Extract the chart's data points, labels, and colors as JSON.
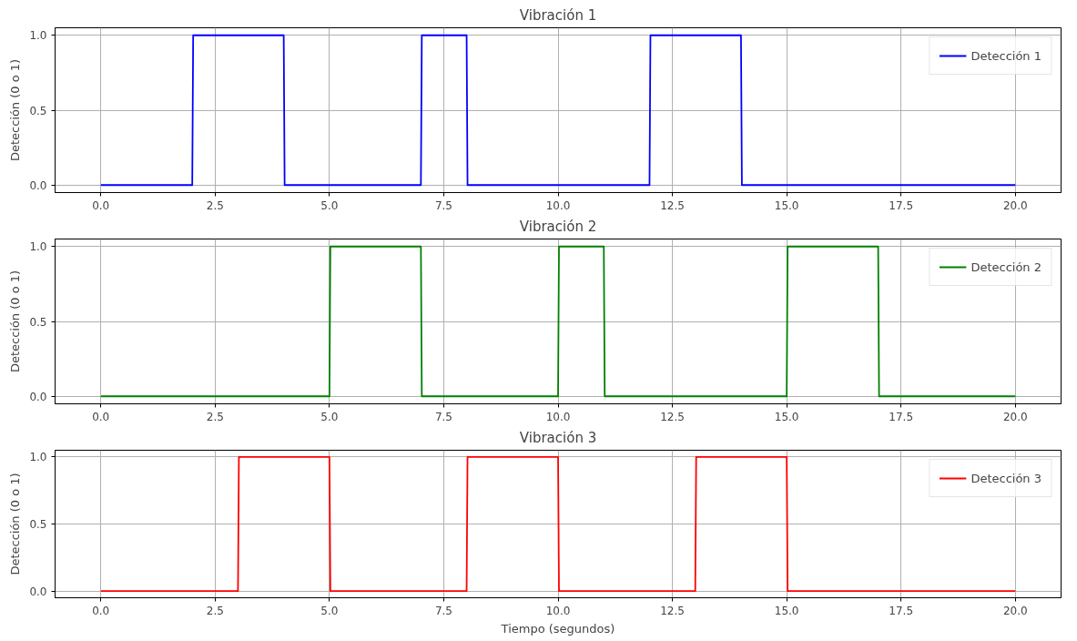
{
  "chart_data": [
    {
      "type": "line",
      "title": "Vibración 1",
      "ylabel": "Detección (0 o 1)",
      "x": [
        0,
        2,
        2.02,
        4,
        4.02,
        7,
        7.02,
        8,
        8.02,
        12,
        12.02,
        14,
        14.02,
        20
      ],
      "series": [
        {
          "name": "Detección 1",
          "color": "#0000ff",
          "values": [
            0,
            0,
            1,
            1,
            0,
            0,
            1,
            1,
            0,
            0,
            1,
            1,
            0,
            0
          ]
        }
      ],
      "xlim": [
        -1,
        21
      ],
      "ylim": [
        -0.05,
        1.05
      ],
      "xticks": [
        {
          "value": 0,
          "label": "0.0"
        },
        {
          "value": 2.5,
          "label": "2.5"
        },
        {
          "value": 5,
          "label": "5.0"
        },
        {
          "value": 7.5,
          "label": "7.5"
        },
        {
          "value": 10,
          "label": "10.0"
        },
        {
          "value": 12.5,
          "label": "12.5"
        },
        {
          "value": 15,
          "label": "15.0"
        },
        {
          "value": 17.5,
          "label": "17.5"
        },
        {
          "value": 20,
          "label": "20.0"
        }
      ],
      "yticks": [
        {
          "value": 0,
          "label": "0.0"
        },
        {
          "value": 0.5,
          "label": "0.5"
        },
        {
          "value": 1,
          "label": "1.0"
        }
      ],
      "grid": true,
      "legend": "top right"
    },
    {
      "type": "line",
      "title": "Vibración 2",
      "ylabel": "Detección (0 o 1)",
      "x": [
        0,
        5,
        5.02,
        7,
        7.02,
        10,
        10.02,
        11,
        11.02,
        15,
        15.02,
        17,
        17.02,
        20
      ],
      "series": [
        {
          "name": "Detección 2",
          "color": "#008000",
          "values": [
            0,
            0,
            1,
            1,
            0,
            0,
            1,
            1,
            0,
            0,
            1,
            1,
            0,
            0
          ]
        }
      ],
      "xlim": [
        -1,
        21
      ],
      "ylim": [
        -0.05,
        1.05
      ],
      "xticks": [
        {
          "value": 0,
          "label": "0.0"
        },
        {
          "value": 2.5,
          "label": "2.5"
        },
        {
          "value": 5,
          "label": "5.0"
        },
        {
          "value": 7.5,
          "label": "7.5"
        },
        {
          "value": 10,
          "label": "10.0"
        },
        {
          "value": 12.5,
          "label": "12.5"
        },
        {
          "value": 15,
          "label": "15.0"
        },
        {
          "value": 17.5,
          "label": "17.5"
        },
        {
          "value": 20,
          "label": "20.0"
        }
      ],
      "yticks": [
        {
          "value": 0,
          "label": "0.0"
        },
        {
          "value": 0.5,
          "label": "0.5"
        },
        {
          "value": 1,
          "label": "1.0"
        }
      ],
      "grid": true,
      "legend": "top right"
    },
    {
      "type": "line",
      "title": "Vibración 3",
      "ylabel": "Detección (0 o 1)",
      "xlabel": "Tiempo (segundos)",
      "x": [
        0,
        3,
        3.02,
        5,
        5.02,
        8,
        8.02,
        10,
        10.02,
        13,
        13.02,
        15,
        15.02,
        20
      ],
      "series": [
        {
          "name": "Detección 3",
          "color": "#ff0000",
          "values": [
            0,
            0,
            1,
            1,
            0,
            0,
            1,
            1,
            0,
            0,
            1,
            1,
            0,
            0
          ]
        }
      ],
      "xlim": [
        -1,
        21
      ],
      "ylim": [
        -0.05,
        1.05
      ],
      "xticks": [
        {
          "value": 0,
          "label": "0.0"
        },
        {
          "value": 2.5,
          "label": "2.5"
        },
        {
          "value": 5,
          "label": "5.0"
        },
        {
          "value": 7.5,
          "label": "7.5"
        },
        {
          "value": 10,
          "label": "10.0"
        },
        {
          "value": 12.5,
          "label": "12.5"
        },
        {
          "value": 15,
          "label": "15.0"
        },
        {
          "value": 17.5,
          "label": "17.5"
        },
        {
          "value": 20,
          "label": "20.0"
        }
      ],
      "yticks": [
        {
          "value": 0,
          "label": "0.0"
        },
        {
          "value": 0.5,
          "label": "0.5"
        },
        {
          "value": 1,
          "label": "1.0"
        }
      ],
      "grid": true,
      "legend": "top right"
    }
  ]
}
